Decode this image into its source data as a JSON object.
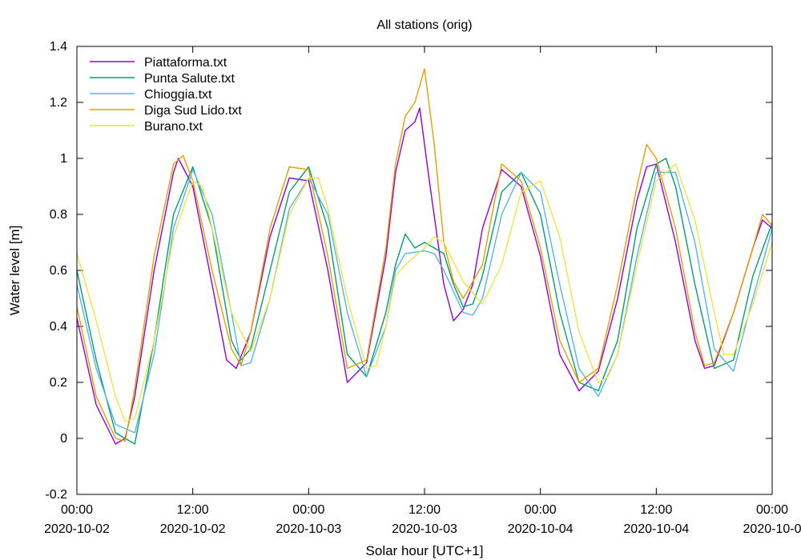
{
  "chart_data": {
    "type": "line",
    "title": "All stations (orig)",
    "xlabel": "Solar hour [UTC+1]",
    "ylabel": "Water level [m]",
    "xlim": [
      "2020-10-02 00:00",
      "2020-10-05 00:00"
    ],
    "ylim": [
      -0.2,
      1.4
    ],
    "yticks": [
      -0.2,
      0,
      0.2,
      0.4,
      0.6,
      0.8,
      1,
      1.2,
      1.4
    ],
    "ytick_labels": [
      "-0.2",
      "0",
      "0.2",
      "0.4",
      "0.6",
      "0.8",
      "1",
      "1.2",
      "1.4"
    ],
    "xticks": [
      {
        "x": "2020-10-02 00:00",
        "time": "00:00",
        "date": "2020-10-02"
      },
      {
        "x": "2020-10-02 12:00",
        "time": "12:00",
        "date": "2020-10-02"
      },
      {
        "x": "2020-10-03 00:00",
        "time": "00:00",
        "date": "2020-10-03"
      },
      {
        "x": "2020-10-03 12:00",
        "time": "12:00",
        "date": "2020-10-03"
      },
      {
        "x": "2020-10-04 00:00",
        "time": "00:00",
        "date": "2020-10-04"
      },
      {
        "x": "2020-10-04 12:00",
        "time": "12:00",
        "date": "2020-10-04"
      },
      {
        "x": "2020-10-05 00:00",
        "time": "00:00",
        "date": "2020-10-0"
      }
    ],
    "legend_position": "top-left",
    "grid": false,
    "series": [
      {
        "name": "Piattaforma.txt",
        "color": "#9400d3",
        "x": [
          "2020-10-02 00:00",
          "2020-10-02 02:00",
          "2020-10-02 04:00",
          "2020-10-02 05:00",
          "2020-10-02 06:00",
          "2020-10-02 08:00",
          "2020-10-02 10:00",
          "2020-10-02 10:30",
          "2020-10-02 12:00",
          "2020-10-02 14:00",
          "2020-10-02 15:30",
          "2020-10-02 16:30",
          "2020-10-02 18:00",
          "2020-10-02 20:00",
          "2020-10-02 22:00",
          "2020-10-03 00:00",
          "2020-10-03 02:00",
          "2020-10-03 04:00",
          "2020-10-03 06:00",
          "2020-10-03 08:00",
          "2020-10-03 09:00",
          "2020-10-03 10:00",
          "2020-10-03 11:00",
          "2020-10-03 11:30",
          "2020-10-03 12:00",
          "2020-10-03 12:30",
          "2020-10-03 14:00",
          "2020-10-03 15:00",
          "2020-10-03 16:00",
          "2020-10-03 17:00",
          "2020-10-03 18:00",
          "2020-10-03 20:00",
          "2020-10-03 22:00",
          "2020-10-04 00:00",
          "2020-10-04 02:00",
          "2020-10-04 04:00",
          "2020-10-04 06:00",
          "2020-10-04 08:00",
          "2020-10-04 10:00",
          "2020-10-04 11:00",
          "2020-10-04 12:00",
          "2020-10-04 14:00",
          "2020-10-04 16:00",
          "2020-10-04 17:00",
          "2020-10-04 18:00",
          "2020-10-04 20:00",
          "2020-10-04 22:00",
          "2020-10-04 23:00",
          "2020-10-05 00:00"
        ],
        "y": [
          0.43,
          0.12,
          -0.02,
          0.0,
          0.15,
          0.6,
          0.95,
          1.0,
          0.9,
          0.55,
          0.28,
          0.25,
          0.38,
          0.72,
          0.93,
          0.92,
          0.6,
          0.2,
          0.27,
          0.65,
          0.95,
          1.1,
          1.13,
          1.18,
          1.05,
          0.92,
          0.55,
          0.42,
          0.46,
          0.55,
          0.75,
          0.96,
          0.9,
          0.65,
          0.3,
          0.17,
          0.24,
          0.5,
          0.85,
          0.97,
          0.98,
          0.7,
          0.35,
          0.25,
          0.26,
          0.45,
          0.68,
          0.78,
          0.75
        ]
      },
      {
        "name": "Punta Salute.txt",
        "color": "#009e73",
        "x": [
          "2020-10-02 00:00",
          "2020-10-02 02:00",
          "2020-10-02 04:00",
          "2020-10-02 06:00",
          "2020-10-02 08:00",
          "2020-10-02 10:00",
          "2020-10-02 12:00",
          "2020-10-02 14:00",
          "2020-10-02 16:00",
          "2020-10-02 17:00",
          "2020-10-02 18:00",
          "2020-10-02 20:00",
          "2020-10-02 22:00",
          "2020-10-03 00:00",
          "2020-10-03 02:00",
          "2020-10-03 04:00",
          "2020-10-03 06:00",
          "2020-10-03 08:00",
          "2020-10-03 09:00",
          "2020-10-03 10:00",
          "2020-10-03 11:00",
          "2020-10-03 12:00",
          "2020-10-03 14:00",
          "2020-10-03 15:00",
          "2020-10-03 16:00",
          "2020-10-03 17:00",
          "2020-10-03 18:00",
          "2020-10-03 20:00",
          "2020-10-03 22:00",
          "2020-10-04 00:00",
          "2020-10-04 02:00",
          "2020-10-04 04:00",
          "2020-10-04 06:00",
          "2020-10-04 08:00",
          "2020-10-04 10:00",
          "2020-10-04 12:00",
          "2020-10-04 13:00",
          "2020-10-04 14:00",
          "2020-10-04 16:00",
          "2020-10-04 18:00",
          "2020-10-04 20:00",
          "2020-10-04 22:00",
          "2020-10-05 00:00"
        ],
        "y": [
          0.6,
          0.28,
          0.02,
          -0.02,
          0.35,
          0.8,
          0.97,
          0.75,
          0.35,
          0.28,
          0.32,
          0.6,
          0.88,
          0.97,
          0.75,
          0.3,
          0.22,
          0.45,
          0.62,
          0.73,
          0.68,
          0.7,
          0.66,
          0.55,
          0.47,
          0.48,
          0.58,
          0.88,
          0.95,
          0.8,
          0.45,
          0.2,
          0.17,
          0.35,
          0.75,
          0.98,
          1.0,
          0.9,
          0.55,
          0.25,
          0.28,
          0.58,
          0.77
        ]
      },
      {
        "name": "Chioggia.txt",
        "color": "#56b4e9",
        "x": [
          "2020-10-02 00:00",
          "2020-10-02 02:00",
          "2020-10-02 04:00",
          "2020-10-02 06:00",
          "2020-10-02 08:00",
          "2020-10-02 10:00",
          "2020-10-02 12:00",
          "2020-10-02 14:00",
          "2020-10-02 16:00",
          "2020-10-02 17:00",
          "2020-10-02 18:00",
          "2020-10-02 20:00",
          "2020-10-02 22:00",
          "2020-10-03 00:00",
          "2020-10-03 02:00",
          "2020-10-03 04:00",
          "2020-10-03 06:00",
          "2020-10-03 08:00",
          "2020-10-03 09:00",
          "2020-10-03 10:00",
          "2020-10-03 12:00",
          "2020-10-03 13:00",
          "2020-10-03 14:00",
          "2020-10-03 16:00",
          "2020-10-03 17:00",
          "2020-10-03 18:00",
          "2020-10-03 20:00",
          "2020-10-03 22:00",
          "2020-10-04 00:00",
          "2020-10-04 02:00",
          "2020-10-04 04:00",
          "2020-10-04 06:00",
          "2020-10-04 08:00",
          "2020-10-04 10:00",
          "2020-10-04 12:00",
          "2020-10-04 14:00",
          "2020-10-04 16:00",
          "2020-10-04 18:00",
          "2020-10-04 20:00",
          "2020-10-04 22:00",
          "2020-10-05 00:00"
        ],
        "y": [
          0.55,
          0.25,
          0.05,
          0.02,
          0.3,
          0.75,
          0.96,
          0.8,
          0.45,
          0.26,
          0.27,
          0.5,
          0.82,
          0.93,
          0.8,
          0.45,
          0.22,
          0.4,
          0.6,
          0.66,
          0.67,
          0.66,
          0.6,
          0.45,
          0.44,
          0.5,
          0.8,
          0.95,
          0.88,
          0.55,
          0.25,
          0.15,
          0.3,
          0.65,
          0.95,
          0.95,
          0.7,
          0.32,
          0.24,
          0.5,
          0.75
        ]
      },
      {
        "name": "Diga Sud Lido.txt",
        "color": "#e69f00",
        "x": [
          "2020-10-02 00:00",
          "2020-10-02 02:00",
          "2020-10-02 04:00",
          "2020-10-02 05:00",
          "2020-10-02 06:00",
          "2020-10-02 08:00",
          "2020-10-02 10:00",
          "2020-10-02 11:00",
          "2020-10-02 12:00",
          "2020-10-02 14:00",
          "2020-10-02 16:00",
          "2020-10-02 17:00",
          "2020-10-02 18:00",
          "2020-10-02 20:00",
          "2020-10-02 22:00",
          "2020-10-03 00:00",
          "2020-10-03 02:00",
          "2020-10-03 04:00",
          "2020-10-03 06:00",
          "2020-10-03 08:00",
          "2020-10-03 09:00",
          "2020-10-03 10:00",
          "2020-10-03 11:00",
          "2020-10-03 12:00",
          "2020-10-03 13:00",
          "2020-10-03 14:00",
          "2020-10-03 15:00",
          "2020-10-03 16:00",
          "2020-10-03 18:00",
          "2020-10-03 20:00",
          "2020-10-03 22:00",
          "2020-10-04 00:00",
          "2020-10-04 02:00",
          "2020-10-04 04:00",
          "2020-10-04 06:00",
          "2020-10-04 08:00",
          "2020-10-04 10:00",
          "2020-10-04 11:00",
          "2020-10-04 12:00",
          "2020-10-04 14:00",
          "2020-10-04 16:00",
          "2020-10-04 17:00",
          "2020-10-04 18:00",
          "2020-10-04 20:00",
          "2020-10-04 22:00",
          "2020-10-04 23:00",
          "2020-10-05 00:00"
        ],
        "y": [
          0.47,
          0.15,
          0.0,
          -0.01,
          0.18,
          0.65,
          0.98,
          1.01,
          0.92,
          0.6,
          0.32,
          0.26,
          0.38,
          0.75,
          0.97,
          0.96,
          0.65,
          0.25,
          0.28,
          0.68,
          0.98,
          1.15,
          1.2,
          1.32,
          1.05,
          0.7,
          0.56,
          0.5,
          0.62,
          0.98,
          0.92,
          0.68,
          0.35,
          0.2,
          0.25,
          0.55,
          0.9,
          1.05,
          1.0,
          0.75,
          0.38,
          0.26,
          0.27,
          0.45,
          0.68,
          0.8,
          0.76
        ]
      },
      {
        "name": "Burano.txt",
        "color": "#f0e442",
        "x": [
          "2020-10-02 00:00",
          "2020-10-02 02:00",
          "2020-10-02 04:00",
          "2020-10-02 05:00",
          "2020-10-02 06:00",
          "2020-10-02 08:00",
          "2020-10-02 10:00",
          "2020-10-02 12:00",
          "2020-10-02 13:00",
          "2020-10-02 14:00",
          "2020-10-02 16:00",
          "2020-10-02 18:00",
          "2020-10-02 20:00",
          "2020-10-02 22:00",
          "2020-10-03 00:00",
          "2020-10-03 01:00",
          "2020-10-03 02:00",
          "2020-10-03 04:00",
          "2020-10-03 06:00",
          "2020-10-03 07:00",
          "2020-10-03 08:00",
          "2020-10-03 09:00",
          "2020-10-03 10:00",
          "2020-10-03 12:00",
          "2020-10-03 13:00",
          "2020-10-03 14:00",
          "2020-10-03 16:00",
          "2020-10-03 18:00",
          "2020-10-03 20:00",
          "2020-10-03 22:00",
          "2020-10-04 00:00",
          "2020-10-04 02:00",
          "2020-10-04 04:00",
          "2020-10-04 06:00",
          "2020-10-04 07:00",
          "2020-10-04 08:00",
          "2020-10-04 10:00",
          "2020-10-04 12:00",
          "2020-10-04 14:00",
          "2020-10-04 16:00",
          "2020-10-04 18:00",
          "2020-10-04 19:00",
          "2020-10-04 20:00",
          "2020-10-04 22:00",
          "2020-10-05 00:00"
        ],
        "y": [
          0.66,
          0.42,
          0.15,
          0.06,
          0.07,
          0.35,
          0.72,
          0.92,
          0.9,
          0.75,
          0.45,
          0.31,
          0.5,
          0.8,
          0.93,
          0.93,
          0.82,
          0.5,
          0.25,
          0.26,
          0.4,
          0.58,
          0.62,
          0.68,
          0.72,
          0.7,
          0.56,
          0.48,
          0.62,
          0.88,
          0.92,
          0.72,
          0.38,
          0.2,
          0.22,
          0.3,
          0.62,
          0.92,
          0.98,
          0.78,
          0.45,
          0.3,
          0.3,
          0.48,
          0.7
        ]
      }
    ]
  }
}
